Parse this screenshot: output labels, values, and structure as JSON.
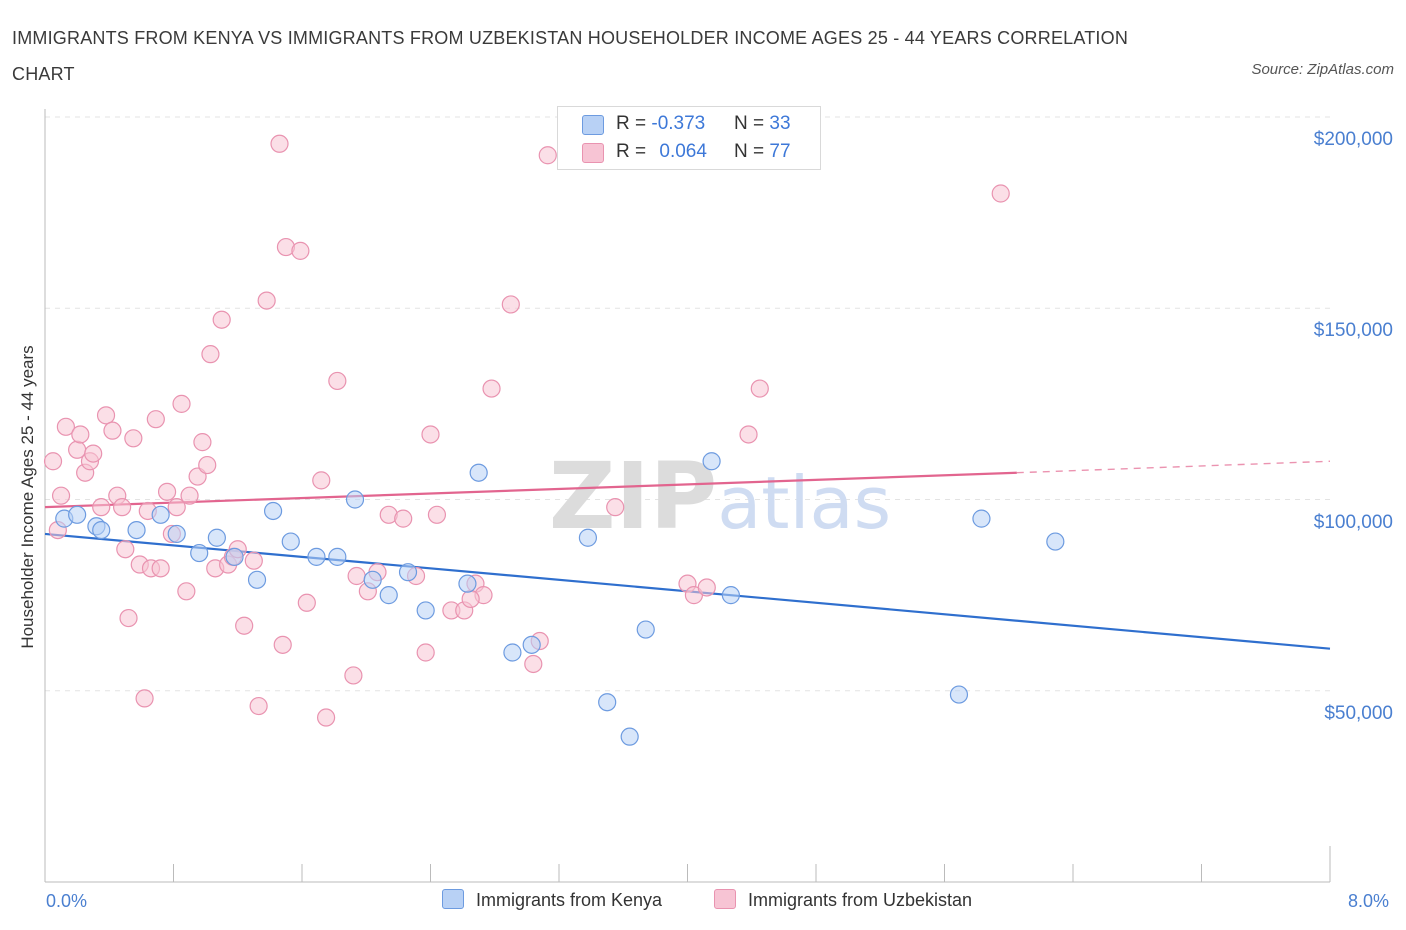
{
  "title": "IMMIGRANTS FROM KENYA VS IMMIGRANTS FROM UZBEKISTAN HOUSEHOLDER INCOME AGES 25 - 44 YEARS CORRELATION CHART",
  "source": "Source: ZipAtlas.com",
  "watermark": "ZIPatlas",
  "legend": {
    "kenya": {
      "r_label": "R = ",
      "r_value": "-0.373",
      "n_label": "N = ",
      "n_value": "33"
    },
    "uzbekistan": {
      "r_label": "R = ",
      "r_value": "0.064",
      "n_label": "N = ",
      "n_value": "77"
    }
  },
  "colors": {
    "kenya_fill": "#b8d1f5",
    "kenya_stroke": "#6d9be0",
    "kenya_line": "#2f6fce",
    "uzbek_fill": "#f7c4d4",
    "uzbek_stroke": "#e993b0",
    "uzbek_line": "#e2658f"
  },
  "chart_data": {
    "type": "scatter",
    "title": "IMMIGRANTS FROM KENYA VS IMMIGRANTS FROM UZBEKISTAN HOUSEHOLDER INCOME AGES 25 - 44 YEARS CORRELATION CHART",
    "xlabel": "",
    "ylabel": "Householder Income Ages 25 - 44 years",
    "xlim": [
      0,
      8
    ],
    "ylim": [
      0,
      200000
    ],
    "x_tick_labels": [
      "0.0%",
      "8.0%"
    ],
    "y_tick_labels": [
      "$50,000",
      "$100,000",
      "$150,000",
      "$200,000"
    ],
    "y_ticks": [
      50000,
      100000,
      150000,
      200000
    ],
    "grid": true,
    "legend_position": "top-center",
    "series": [
      {
        "name": "Immigrants from Kenya",
        "r": -0.373,
        "n": 33,
        "trend": {
          "x": [
            0,
            8
          ],
          "y": [
            91000,
            61000
          ]
        },
        "points": [
          [
            0.12,
            95000
          ],
          [
            0.32,
            93000
          ],
          [
            0.57,
            92000
          ],
          [
            0.72,
            96000
          ],
          [
            0.82,
            91000
          ],
          [
            0.96,
            86000
          ],
          [
            1.07,
            90000
          ],
          [
            1.18,
            85000
          ],
          [
            1.32,
            79000
          ],
          [
            1.42,
            97000
          ],
          [
            1.53,
            89000
          ],
          [
            1.69,
            85000
          ],
          [
            1.82,
            85000
          ],
          [
            1.93,
            100000
          ],
          [
            2.04,
            79000
          ],
          [
            2.14,
            75000
          ],
          [
            2.26,
            81000
          ],
          [
            2.37,
            71000
          ],
          [
            2.7,
            107000
          ],
          [
            2.63,
            78000
          ],
          [
            2.91,
            60000
          ],
          [
            3.03,
            62000
          ],
          [
            3.38,
            90000
          ],
          [
            3.5,
            47000
          ],
          [
            3.64,
            38000
          ],
          [
            3.74,
            66000
          ],
          [
            4.15,
            110000
          ],
          [
            4.27,
            75000
          ],
          [
            5.69,
            49000
          ],
          [
            5.83,
            95000
          ],
          [
            6.29,
            89000
          ],
          [
            0.2,
            96000
          ],
          [
            0.35,
            92000
          ]
        ]
      },
      {
        "name": "Immigrants from Uzbekistan",
        "r": 0.064,
        "n": 77,
        "trend": {
          "x": [
            0,
            6.05
          ],
          "y": [
            98000,
            107000
          ]
        },
        "trend_dashed": {
          "x": [
            6.05,
            8
          ],
          "y": [
            107000,
            110000
          ]
        },
        "points": [
          [
            0.05,
            110000
          ],
          [
            0.1,
            101000
          ],
          [
            0.13,
            119000
          ],
          [
            0.2,
            113000
          ],
          [
            0.22,
            117000
          ],
          [
            0.25,
            107000
          ],
          [
            0.28,
            110000
          ],
          [
            0.3,
            112000
          ],
          [
            0.35,
            98000
          ],
          [
            0.38,
            122000
          ],
          [
            0.42,
            118000
          ],
          [
            0.45,
            101000
          ],
          [
            0.48,
            98000
          ],
          [
            0.5,
            87000
          ],
          [
            0.52,
            69000
          ],
          [
            0.55,
            116000
          ],
          [
            0.59,
            83000
          ],
          [
            0.62,
            48000
          ],
          [
            0.64,
            97000
          ],
          [
            0.66,
            82000
          ],
          [
            0.69,
            121000
          ],
          [
            0.72,
            82000
          ],
          [
            0.76,
            102000
          ],
          [
            0.79,
            91000
          ],
          [
            0.82,
            98000
          ],
          [
            0.85,
            125000
          ],
          [
            0.88,
            76000
          ],
          [
            0.9,
            101000
          ],
          [
            0.95,
            106000
          ],
          [
            0.98,
            115000
          ],
          [
            1.01,
            109000
          ],
          [
            1.03,
            138000
          ],
          [
            1.06,
            82000
          ],
          [
            1.1,
            147000
          ],
          [
            1.14,
            83000
          ],
          [
            1.17,
            85000
          ],
          [
            1.2,
            87000
          ],
          [
            1.24,
            67000
          ],
          [
            1.3,
            84000
          ],
          [
            1.33,
            46000
          ],
          [
            1.38,
            152000
          ],
          [
            1.46,
            193000
          ],
          [
            1.48,
            62000
          ],
          [
            1.5,
            166000
          ],
          [
            1.59,
            165000
          ],
          [
            1.63,
            73000
          ],
          [
            1.72,
            105000
          ],
          [
            1.75,
            43000
          ],
          [
            1.82,
            131000
          ],
          [
            1.92,
            54000
          ],
          [
            1.94,
            80000
          ],
          [
            2.01,
            76000
          ],
          [
            2.07,
            81000
          ],
          [
            2.14,
            96000
          ],
          [
            2.23,
            95000
          ],
          [
            2.31,
            80000
          ],
          [
            2.37,
            60000
          ],
          [
            2.4,
            117000
          ],
          [
            2.44,
            96000
          ],
          [
            2.53,
            71000
          ],
          [
            2.61,
            71000
          ],
          [
            2.68,
            78000
          ],
          [
            2.73,
            75000
          ],
          [
            2.78,
            129000
          ],
          [
            2.9,
            151000
          ],
          [
            3.04,
            57000
          ],
          [
            3.08,
            63000
          ],
          [
            3.13,
            190000
          ],
          [
            3.55,
            98000
          ],
          [
            4.0,
            78000
          ],
          [
            4.04,
            75000
          ],
          [
            4.12,
            77000
          ],
          [
            4.38,
            117000
          ],
          [
            4.45,
            129000
          ],
          [
            5.95,
            180000
          ],
          [
            0.08,
            92000
          ],
          [
            2.65,
            74000
          ]
        ]
      }
    ]
  }
}
